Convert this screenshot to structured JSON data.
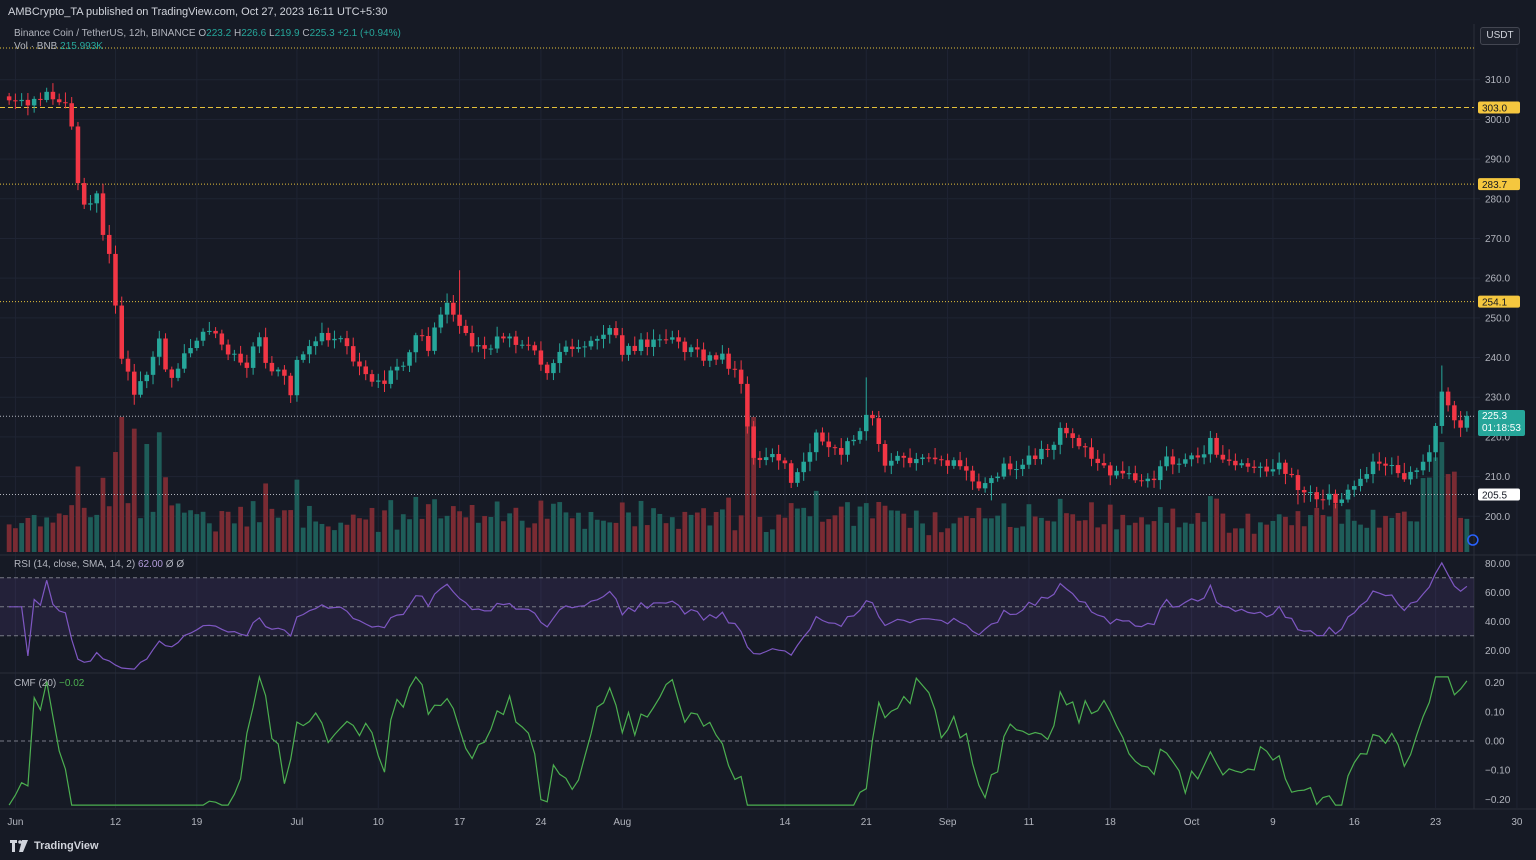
{
  "publish_line": "AMBCrypto_TA published on TradingView.com, Oct 27, 2023 16:11 UTC+5:30",
  "symbol": {
    "name": "Binance Coin / TetherUS, 12h, BINANCE",
    "open_label": "O",
    "open": "223.2",
    "high_label": "H",
    "high": "226.6",
    "low_label": "L",
    "low": "219.9",
    "close_label": "C",
    "close": "225.3",
    "change": "+2.1 (+0.94%)"
  },
  "volume_legend": {
    "label": "Vol · BNB",
    "value": "215.993K"
  },
  "rsi_legend": {
    "label": "RSI (14, close, SMA, 14, 2)",
    "value": "62.00",
    "extra": "Ø Ø"
  },
  "cmf_legend": {
    "label": "CMF (20)",
    "value": "−0.02"
  },
  "currency_button": "USDT",
  "price_tag": {
    "value": "225.3",
    "countdown": "01:18:53"
  },
  "brand": "TradingView",
  "colors": {
    "up": "#26a69a",
    "down": "#f23645",
    "level": "#e5c13b",
    "rsi": "#7e57c2",
    "cmf": "#4caf50",
    "bg": "#161a25"
  },
  "chart_data": [
    {
      "type": "candlestick",
      "price_range": [
        191,
        318
      ],
      "y_ticks": [
        "310.0",
        "300.0",
        "290.0",
        "280.0",
        "270.0",
        "260.0",
        "250.0",
        "240.0",
        "230.0",
        "220.0",
        "210.0",
        "200.0"
      ],
      "y_tick_values": [
        310,
        300,
        290,
        280,
        270,
        260,
        250,
        240,
        230,
        220,
        210,
        200
      ],
      "x_ticks": [
        "Jun",
        "12",
        "19",
        "Jul",
        "10",
        "17",
        "24",
        "Aug",
        "14",
        "21",
        "Sep",
        "11",
        "18",
        "Oct",
        "9",
        "16",
        "23",
        "30"
      ],
      "x_tick_bar_index": [
        1,
        17,
        30,
        46,
        59,
        72,
        85,
        98,
        124,
        137,
        150,
        163,
        176,
        189,
        202,
        215,
        228,
        241
      ],
      "horizontal_levels": [
        {
          "value": 303.0,
          "label": "303.0",
          "style": "dashed"
        },
        {
          "value": 283.7,
          "label": "283.7",
          "style": "dotted"
        },
        {
          "value": 254.1,
          "label": "254.1",
          "style": "dotted"
        },
        {
          "value": 205.5,
          "label": "205.5",
          "style": "dotted-white"
        },
        {
          "value": 225.2,
          "label": "225.2",
          "style": "dotted-white"
        },
        {
          "value": 318.0,
          "label": "",
          "style": "dotted"
        }
      ],
      "close_keypoints": [
        [
          0,
          306
        ],
        [
          3,
          305
        ],
        [
          6,
          306
        ],
        [
          9,
          305
        ],
        [
          10,
          298
        ],
        [
          11,
          285
        ],
        [
          12,
          278
        ],
        [
          14,
          280
        ],
        [
          15,
          270
        ],
        [
          16,
          266
        ],
        [
          18,
          240
        ],
        [
          20,
          232
        ],
        [
          22,
          235
        ],
        [
          24,
          246
        ],
        [
          25,
          238
        ],
        [
          26,
          234
        ],
        [
          28,
          240
        ],
        [
          30,
          245
        ],
        [
          33,
          246
        ],
        [
          35,
          242
        ],
        [
          38,
          238
        ],
        [
          40,
          245
        ],
        [
          41,
          240
        ],
        [
          43,
          236
        ],
        [
          45,
          232
        ],
        [
          46,
          238
        ],
        [
          48,
          244
        ],
        [
          50,
          247
        ],
        [
          52,
          244
        ],
        [
          54,
          243
        ],
        [
          56,
          238
        ],
        [
          58,
          235
        ],
        [
          60,
          234
        ],
        [
          62,
          237
        ],
        [
          64,
          241
        ],
        [
          65,
          245
        ],
        [
          67,
          243
        ],
        [
          69,
          251
        ],
        [
          70,
          255
        ],
        [
          72,
          248
        ],
        [
          74,
          243
        ],
        [
          76,
          242
        ],
        [
          78,
          245
        ],
        [
          80,
          244
        ],
        [
          83,
          243
        ],
        [
          85,
          238
        ],
        [
          86,
          237
        ],
        [
          88,
          241
        ],
        [
          90,
          242
        ],
        [
          92,
          243
        ],
        [
          94,
          244
        ],
        [
          96,
          247
        ],
        [
          98,
          242
        ],
        [
          100,
          243
        ],
        [
          102,
          244
        ],
        [
          104,
          245
        ],
        [
          106,
          244
        ],
        [
          108,
          242
        ],
        [
          110,
          241
        ],
        [
          112,
          240
        ],
        [
          114,
          240
        ],
        [
          116,
          237
        ],
        [
          117,
          232
        ],
        [
          118,
          224
        ],
        [
          119,
          216
        ],
        [
          120,
          214
        ],
        [
          122,
          215
        ],
        [
          124,
          212
        ],
        [
          125,
          208
        ],
        [
          127,
          213
        ],
        [
          129,
          220
        ],
        [
          131,
          218
        ],
        [
          133,
          217
        ],
        [
          135,
          218
        ],
        [
          136,
          220
        ],
        [
          137,
          226
        ],
        [
          138,
          225
        ],
        [
          140,
          214
        ],
        [
          142,
          214
        ],
        [
          144,
          214
        ],
        [
          146,
          214
        ],
        [
          148,
          214
        ],
        [
          150,
          214
        ],
        [
          152,
          213
        ],
        [
          154,
          210
        ],
        [
          155,
          206
        ],
        [
          157,
          210
        ],
        [
          159,
          212
        ],
        [
          161,
          212
        ],
        [
          163,
          214
        ],
        [
          165,
          216
        ],
        [
          167,
          218
        ],
        [
          168,
          221
        ],
        [
          170,
          220
        ],
        [
          172,
          217
        ],
        [
          174,
          212
        ],
        [
          176,
          211
        ],
        [
          178,
          211
        ],
        [
          180,
          210
        ],
        [
          181,
          208
        ],
        [
          183,
          210
        ],
        [
          185,
          214
        ],
        [
          187,
          214
        ],
        [
          189,
          215
        ],
        [
          191,
          216
        ],
        [
          192,
          219
        ],
        [
          193,
          215
        ],
        [
          195,
          213
        ],
        [
          197,
          212
        ],
        [
          199,
          212
        ],
        [
          201,
          212
        ],
        [
          203,
          212
        ],
        [
          205,
          210
        ],
        [
          206,
          206
        ],
        [
          208,
          206
        ],
        [
          210,
          205
        ],
        [
          212,
          204
        ],
        [
          214,
          206
        ],
        [
          216,
          208
        ],
        [
          217,
          212
        ],
        [
          219,
          214
        ],
        [
          221,
          212
        ],
        [
          223,
          210
        ],
        [
          225,
          212
        ],
        [
          227,
          216
        ],
        [
          228,
          222
        ],
        [
          229,
          230
        ],
        [
          230,
          227
        ],
        [
          231,
          224
        ],
        [
          232,
          223
        ],
        [
          233,
          225.3
        ]
      ],
      "volume_scale_K": 500,
      "rsi": {
        "range": [
          5,
          85
        ],
        "ticks": [
          "80.00",
          "60.00",
          "40.00",
          "20.00"
        ],
        "tick_values": [
          80,
          60,
          40,
          20
        ],
        "band": [
          30,
          70
        ],
        "mid": 50
      },
      "cmf": {
        "range": [
          -0.23,
          0.23
        ],
        "ticks": [
          "0.20",
          "0.10",
          "0.00",
          "−0.10",
          "−0.20"
        ],
        "tick_values": [
          0.2,
          0.1,
          0,
          -0.1,
          -0.2
        ],
        "zero": 0
      }
    }
  ]
}
